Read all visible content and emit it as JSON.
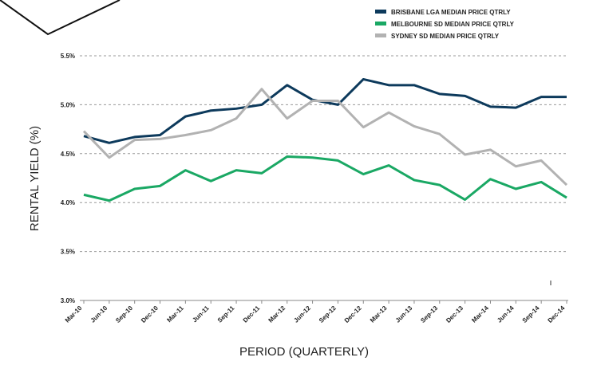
{
  "chart_data": {
    "type": "line",
    "x_label": "PERIOD (QUARTERLY)",
    "y_label": "RENTAL YIELD (%)",
    "categories": [
      "Mar-10",
      "Jun-10",
      "Sep-10",
      "Dec-10",
      "Mar-11",
      "Jun-11",
      "Sep-11",
      "Dec-11",
      "Mar-12",
      "Jun-12",
      "Sep-12",
      "Dec-12",
      "Mar-13",
      "Jun-13",
      "Sep-13",
      "Dec-13",
      "Mar-14",
      "Jun-14",
      "Sep-14",
      "Dec-14"
    ],
    "series": [
      {
        "name": "BRISBANE LGA MEDIAN PRICE QTRLY",
        "color": "#0d3a5c",
        "values": [
          4.68,
          4.61,
          4.67,
          4.69,
          4.88,
          4.94,
          4.96,
          5.0,
          5.2,
          5.05,
          5.0,
          5.26,
          5.2,
          5.2,
          5.11,
          5.09,
          4.98,
          4.97,
          5.08,
          5.08
        ]
      },
      {
        "name": "MELBOURNE SD MEDIAN PRICE QTRLY",
        "color": "#1aa864",
        "values": [
          4.08,
          4.02,
          4.14,
          4.17,
          4.33,
          4.22,
          4.33,
          4.3,
          4.47,
          4.46,
          4.43,
          4.29,
          4.38,
          4.23,
          4.18,
          4.03,
          4.24,
          4.14,
          4.21,
          4.05
        ]
      },
      {
        "name": "SYDNEY SD MEDIAN PRICE QTRLY",
        "color": "#b2b2b2",
        "values": [
          4.73,
          4.46,
          4.64,
          4.65,
          4.69,
          4.74,
          4.86,
          5.16,
          4.86,
          5.04,
          5.04,
          4.77,
          4.92,
          4.78,
          4.7,
          4.49,
          4.54,
          4.37,
          4.43,
          4.18
        ]
      }
    ],
    "ylim": [
      3.0,
      5.5
    ],
    "yticks": [
      {
        "value": 3.0,
        "label": "3.0%"
      },
      {
        "value": 3.5,
        "label": "3.5%"
      },
      {
        "value": 4.0,
        "label": "4.0%"
      },
      {
        "value": 4.5,
        "label": "4.5%"
      },
      {
        "value": 5.0,
        "label": "5.0%"
      },
      {
        "value": 5.5,
        "label": "5.5%"
      }
    ],
    "grid": true,
    "legend": "top-right"
  }
}
